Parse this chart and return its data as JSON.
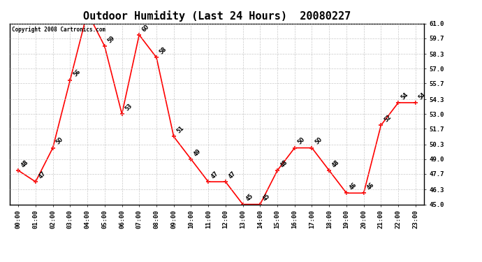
{
  "title": "Outdoor Humidity (Last 24 Hours)  20080227",
  "x_labels": [
    "00:00",
    "01:00",
    "02:00",
    "03:00",
    "04:00",
    "05:00",
    "06:00",
    "07:00",
    "08:00",
    "09:00",
    "10:00",
    "11:00",
    "12:00",
    "13:00",
    "14:00",
    "15:00",
    "16:00",
    "17:00",
    "18:00",
    "19:00",
    "20:00",
    "21:00",
    "22:00",
    "23:00"
  ],
  "y_values": [
    48,
    47,
    50,
    56,
    62,
    59,
    53,
    60,
    58,
    51,
    49,
    47,
    47,
    45,
    45,
    48,
    50,
    50,
    48,
    46,
    46,
    52,
    54,
    54
  ],
  "y_ticks": [
    45.0,
    46.3,
    47.7,
    49.0,
    50.3,
    51.7,
    53.0,
    54.3,
    55.7,
    57.0,
    58.3,
    59.7,
    61.0
  ],
  "ylim_min": 45.0,
  "ylim_max": 61.0,
  "line_color": "red",
  "marker": "+",
  "grid_color": "#bbbbbb",
  "bg_color": "white",
  "copyright_text": "Copyright 2008 Cartronics.com",
  "title_fontsize": 11,
  "label_fontsize": 5.5,
  "tick_fontsize": 6.5,
  "copyright_fontsize": 5.5,
  "annotation_rotation": 45
}
